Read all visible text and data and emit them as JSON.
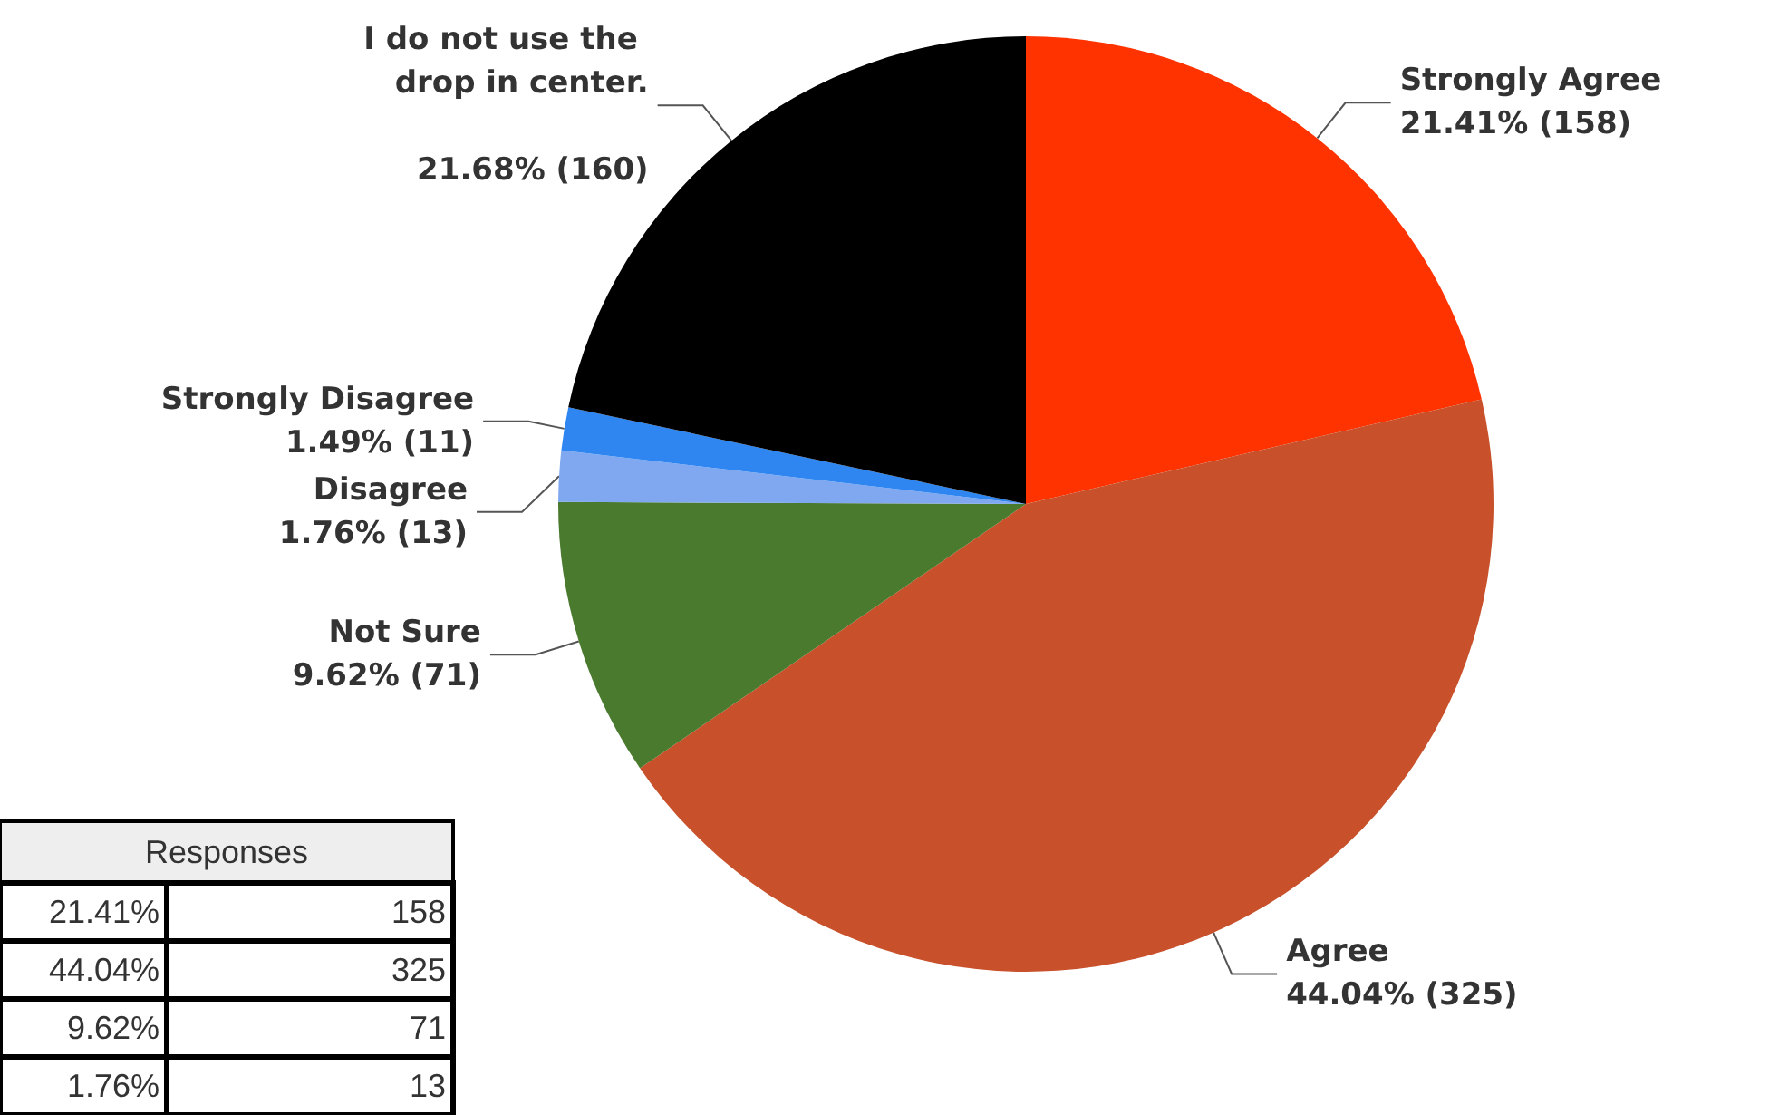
{
  "chart_data": {
    "type": "pie",
    "categories": [
      "Strongly Agree",
      "Agree",
      "Not Sure",
      "Disagree",
      "Strongly Disagree",
      "I do not use the drop in center."
    ],
    "values": [
      158,
      325,
      71,
      13,
      11,
      160
    ],
    "colors": [
      "#ff3300",
      "#c8502a",
      "#4a7a2e",
      "#7fa8f0",
      "#2f86f0",
      "#000000"
    ],
    "value_labels": [
      "21.41% (158)",
      "44.04% (325)",
      "9.62% (71)",
      "1.76% (13)",
      "1.49% (11)",
      "21.68% (160)"
    ],
    "annotations": [
      "Responses",
      "21.41%",
      "158",
      "44.04%",
      "325",
      "9.62%",
      "71",
      "1.76%",
      "13"
    ],
    "legend": false
  }
}
